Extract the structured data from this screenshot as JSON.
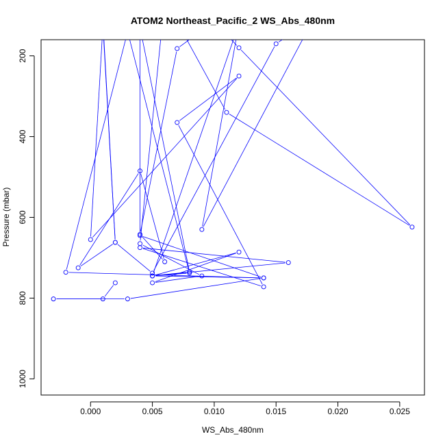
{
  "chart_data": {
    "type": "line",
    "title": "ATOM2 Northeast_Pacific_2 WS_Abs_480nm",
    "xlabel": "WS_Abs_480nm",
    "ylabel": "Pressure (mbar)",
    "xlim": [
      -0.004,
      0.027
    ],
    "ylim": [
      1040,
      160
    ],
    "y_inverted": true,
    "x_ticks": [
      0.0,
      0.005,
      0.01,
      0.015,
      0.02,
      0.025
    ],
    "x_tick_labels": [
      "0.000",
      "0.005",
      "0.010",
      "0.015",
      "0.020",
      "0.025"
    ],
    "y_ticks": [
      200,
      400,
      600,
      800,
      1000
    ],
    "y_tick_labels": [
      "200",
      "400",
      "600",
      "800",
      "1000"
    ],
    "grid": false,
    "legend": "none",
    "series": [
      {
        "color": "#0000ff",
        "marker": "open-circle",
        "points": [
          {
            "x": 0.001,
            "y": 115
          },
          {
            "x": 0.002,
            "y": 662
          },
          {
            "x": 0.001,
            "y": 125
          },
          {
            "x": 0.0,
            "y": 655
          },
          {
            "x": 0.012,
            "y": 250
          },
          {
            "x": 0.007,
            "y": 365
          },
          {
            "x": 0.014,
            "y": 772
          },
          {
            "x": 0.004,
            "y": 675
          },
          {
            "x": 0.016,
            "y": 712
          },
          {
            "x": 0.005,
            "y": 745
          },
          {
            "x": 0.012,
            "y": 686
          },
          {
            "x": 0.005,
            "y": 762
          },
          {
            "x": 0.009,
            "y": 745
          },
          {
            "x": 0.004,
            "y": 665
          },
          {
            "x": 0.006,
            "y": 60
          },
          {
            "x": 0.011,
            "y": 340
          },
          {
            "x": 0.026,
            "y": 624
          },
          {
            "x": 0.012,
            "y": 180
          },
          {
            "x": 0.01,
            "y": 115
          },
          {
            "x": 0.007,
            "y": 182
          },
          {
            "x": 0.004,
            "y": 642
          },
          {
            "x": 0.006,
            "y": 710
          },
          {
            "x": 0.004,
            "y": 485
          },
          {
            "x": -0.001,
            "y": 725
          },
          {
            "x": 0.002,
            "y": 662
          },
          {
            "x": 0.005,
            "y": 738
          },
          {
            "x": 0.015,
            "y": 170
          },
          {
            "x": 0.018,
            "y": 110
          },
          {
            "x": 0.009,
            "y": 630
          },
          {
            "x": 0.012,
            "y": 120
          },
          {
            "x": 0.005,
            "y": 745
          },
          {
            "x": 0.008,
            "y": 735
          },
          {
            "x": 0.004,
            "y": 130
          },
          {
            "x": 0.004,
            "y": 645
          },
          {
            "x": 0.014,
            "y": 750
          },
          {
            "x": 0.005,
            "y": 745
          },
          {
            "x": 0.008,
            "y": 738
          },
          {
            "x": 0.003,
            "y": 140
          },
          {
            "x": -0.002,
            "y": 736
          },
          {
            "x": 0.014,
            "y": 750
          },
          {
            "x": 0.003,
            "y": 802
          },
          {
            "x": -0.003,
            "y": 802
          },
          {
            "x": 0.001,
            "y": 802
          },
          {
            "x": 0.002,
            "y": 762
          }
        ]
      }
    ]
  }
}
